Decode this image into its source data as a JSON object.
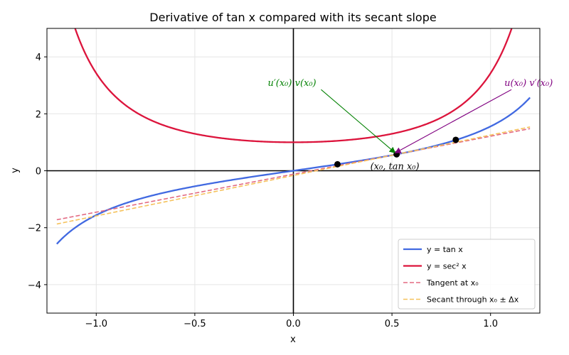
{
  "chart_data": {
    "type": "line",
    "title": "Derivative of tan x compared with its secant slope",
    "xlabel": "x",
    "ylabel": "y",
    "xlim": [
      -1.25,
      1.25
    ],
    "ylim": [
      -5,
      5
    ],
    "x_ticks": [
      -1.0,
      -0.5,
      0.0,
      0.5,
      1.0
    ],
    "x_tick_labels": [
      "−1.0",
      "−0.5",
      "0.0",
      "0.5",
      "1.0"
    ],
    "y_ticks": [
      -4,
      -2,
      0,
      2,
      4
    ],
    "y_tick_labels": [
      "−4",
      "−2",
      "0",
      "2",
      "4"
    ],
    "grid": true,
    "x0": 0.5236,
    "dx": 0.3,
    "series": [
      {
        "name": "y = tan x",
        "function": "tan",
        "domain": [
          -1.2,
          1.2
        ],
        "color": "#4169e1",
        "style": "solid"
      },
      {
        "name": "y = sec² x",
        "function": "sec2",
        "domain": [
          -1.2,
          1.2
        ],
        "color": "#dc143c",
        "style": "solid"
      },
      {
        "name": "Tangent at x₀",
        "function": "tangent",
        "domain": [
          -1.2,
          1.2
        ],
        "color": "#e36a82",
        "style": "dashed"
      },
      {
        "name": "Secant through x₀ ± Δx",
        "function": "secant",
        "domain": [
          -1.2,
          1.2
        ],
        "color": "#f5c25b",
        "style": "dashed"
      }
    ],
    "points": [
      {
        "x": 0.2236,
        "y": 0.2275
      },
      {
        "x": 0.5236,
        "y": 0.5774
      },
      {
        "x": 0.8236,
        "y": 1.0856
      }
    ],
    "annotations": [
      {
        "text": "u′(x₀) v(x₀)",
        "text_x": -0.13,
        "text_y": 3.1,
        "arrow_to_x": 0.5236,
        "arrow_to_y": 0.5774,
        "color": "#008000"
      },
      {
        "text": "u(x₀) v′(x₀)",
        "text_x": 1.07,
        "text_y": 3.1,
        "arrow_to_x": 0.5236,
        "arrow_to_y": 0.5774,
        "color": "#800080"
      },
      {
        "text": "(x₀, tan x₀)",
        "text_x": 0.39,
        "text_y": 0.17,
        "color": "#000000"
      }
    ],
    "legend_position": "lower-right"
  }
}
